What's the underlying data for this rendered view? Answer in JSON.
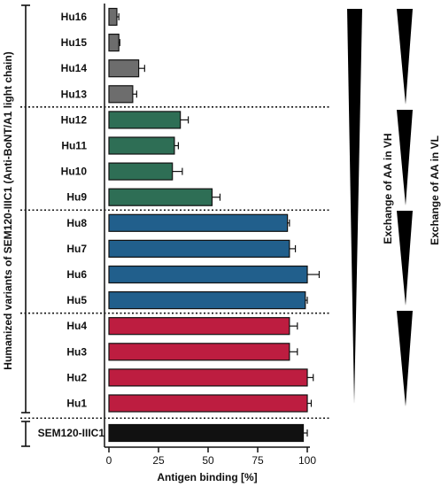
{
  "chart_data": {
    "type": "bar",
    "orientation": "horizontal",
    "categories": [
      "Hu16",
      "Hu15",
      "Hu14",
      "Hu13",
      "Hu12",
      "Hu11",
      "Hu10",
      "Hu9",
      "Hu8",
      "Hu7",
      "Hu6",
      "Hu5",
      "Hu4",
      "Hu3",
      "Hu2",
      "Hu1",
      "SEM120-IIIC1"
    ],
    "values": [
      4,
      5,
      15,
      12,
      36,
      33,
      32,
      52,
      90,
      91,
      100,
      99,
      91,
      91,
      100,
      100,
      98
    ],
    "errors": [
      1,
      0.5,
      3,
      2,
      4,
      2,
      5,
      4,
      1,
      3,
      6,
      1,
      4,
      4,
      3,
      2,
      2
    ],
    "colors": [
      "#6d6d6d",
      "#6d6d6d",
      "#6d6d6d",
      "#6d6d6d",
      "#2e6e55",
      "#2e6e55",
      "#2e6e55",
      "#2e6e55",
      "#215f8c",
      "#215f8c",
      "#215f8c",
      "#215f8c",
      "#bd1d40",
      "#bd1d40",
      "#bd1d40",
      "#bd1d40",
      "#111111"
    ],
    "xlabel": "Antigen binding [%]",
    "ylabel": "Humanized variants of SEM120-IIIC1 (Anti-BoNT/A1 light chain)",
    "xlim": [
      0,
      100
    ],
    "xticks": [
      0,
      25,
      50,
      75,
      100
    ],
    "groups_separated_by_dotted_lines": true,
    "annotations": [
      "Exchange of AA in VH",
      "Exchange of AA in VL"
    ]
  }
}
